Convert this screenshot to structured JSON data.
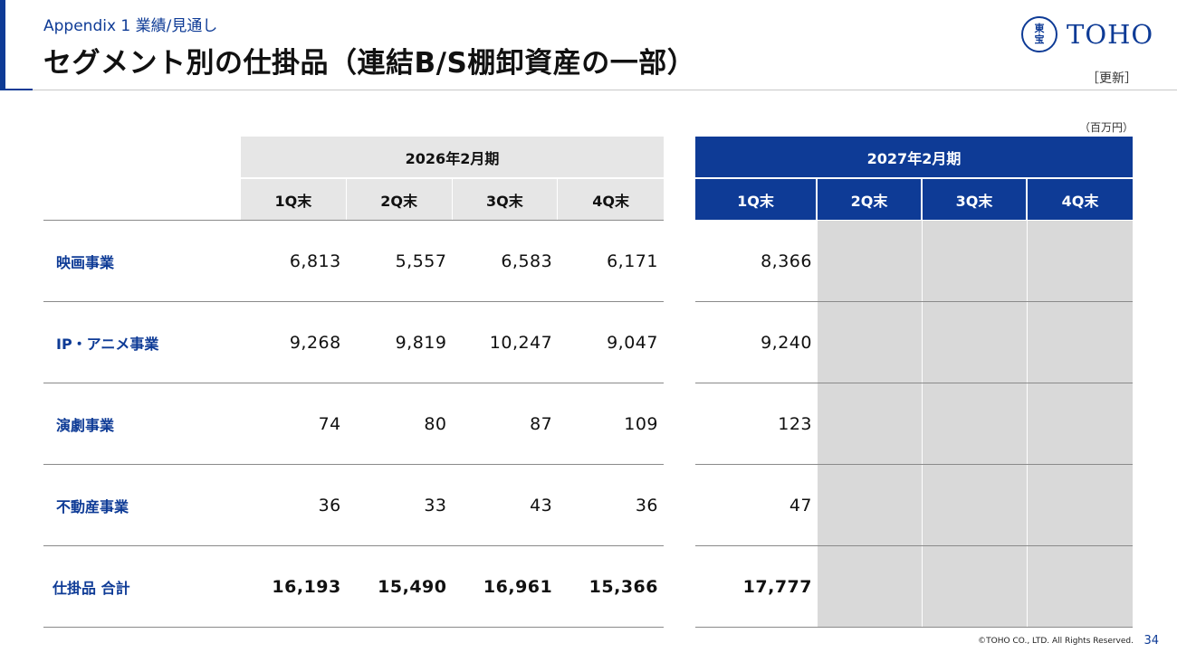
{
  "header": {
    "supertitle": "Appendix 1  業績/見通し",
    "title": "セグメント別の仕掛品（連結B/S棚卸資産の一部）",
    "update_tag": "［更新］",
    "unit": "（百万円）"
  },
  "logo": {
    "mark_line1": "東",
    "mark_line2": "宝",
    "text": "TOHO"
  },
  "colors": {
    "accent": "#0e3b96",
    "header_gray": "#e6e6e6",
    "placeholder_gray": "#d9d9d9"
  },
  "table_left": {
    "period": "2026年2月期",
    "quarters": [
      "1Q末",
      "2Q末",
      "3Q末",
      "4Q末"
    ],
    "rows": [
      {
        "label": "映画事業",
        "values": [
          "6,813",
          "5,557",
          "6,583",
          "6,171"
        ]
      },
      {
        "label": "IP・アニメ事業",
        "values": [
          "9,268",
          "9,819",
          "10,247",
          "9,047"
        ]
      },
      {
        "label": "演劇事業",
        "values": [
          "74",
          "80",
          "87",
          "109"
        ]
      },
      {
        "label": "不動産事業",
        "values": [
          "36",
          "33",
          "43",
          "36"
        ]
      },
      {
        "label": "仕掛品  合計",
        "values": [
          "16,193",
          "15,490",
          "16,961",
          "15,366"
        ]
      }
    ]
  },
  "table_right": {
    "period": "2027年2月期",
    "quarters": [
      "1Q末",
      "2Q末",
      "3Q末",
      "4Q末"
    ],
    "values": [
      "8,366",
      "9,240",
      "123",
      "47",
      "17,777"
    ]
  },
  "footer": {
    "copyright": "©TOHO CO., LTD. All Rights Reserved.",
    "page": "34"
  }
}
